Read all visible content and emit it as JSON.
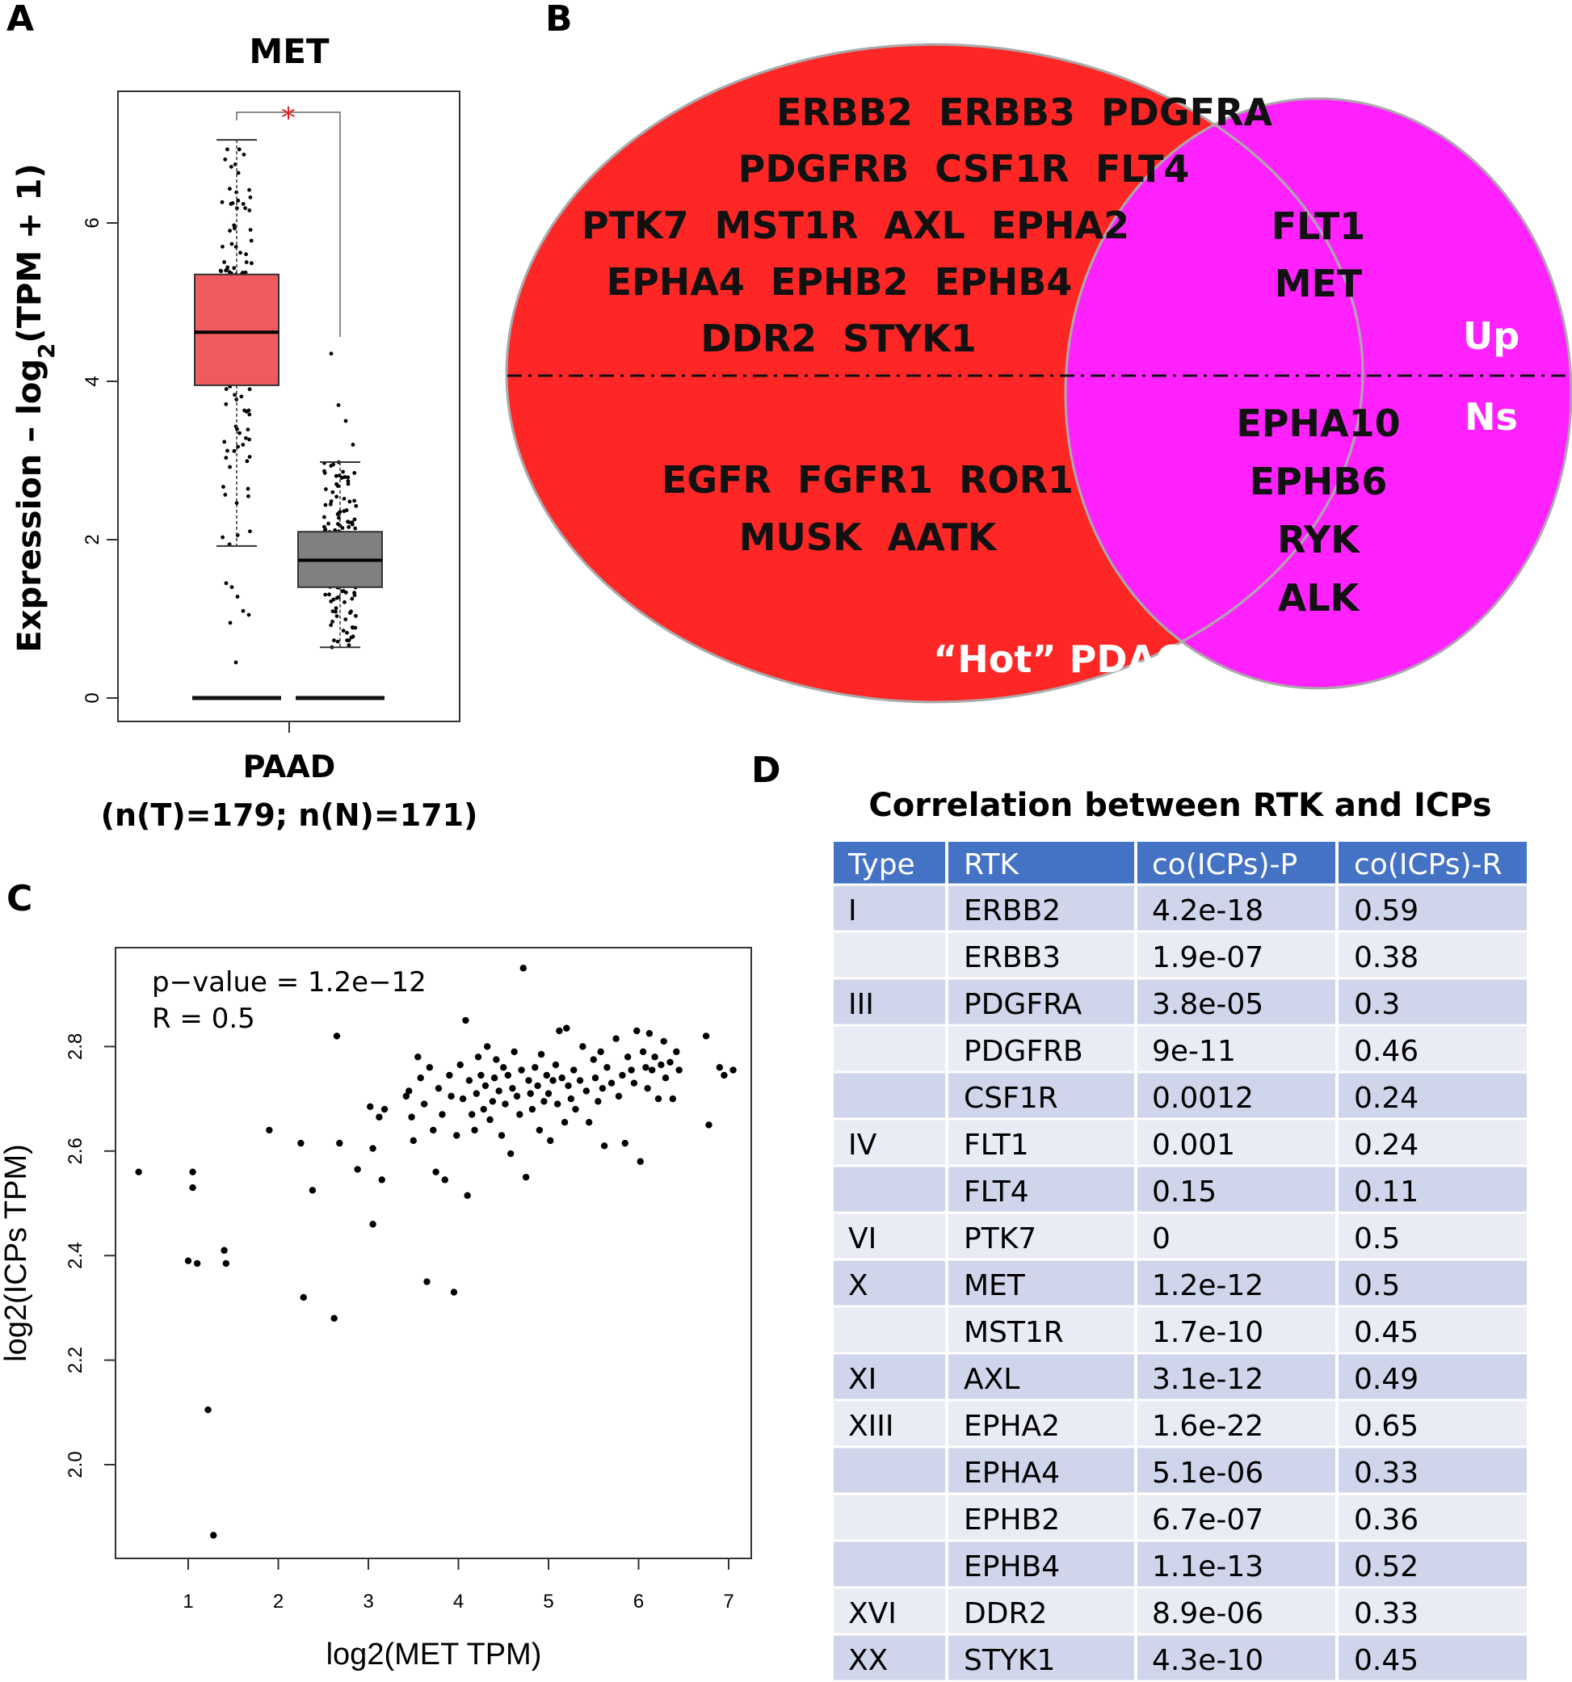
{
  "panels": {
    "a": "A",
    "b": "B",
    "c": "C",
    "d": "D"
  },
  "chart_data": [
    {
      "type": "box",
      "panel": "A",
      "title": "MET",
      "ylabel_prefix": "Expression – log",
      "ylabel_sub": "2",
      "ylabel_suffix": "(TPM + 1)",
      "xlabel": "PAAD",
      "xlabel_line2": "(n(T)=179; n(N)=171)",
      "significance": "*",
      "ylim": [
        -0.2,
        7.6
      ],
      "yticks": [
        "0",
        "2",
        "4",
        "6"
      ],
      "ytick_values": [
        0,
        2,
        4,
        6
      ],
      "colors": {
        "tumor": "#f05a5e",
        "normal": "#808080",
        "significance": "#e02020"
      },
      "boxes": [
        {
          "group": "T",
          "q1": 3.95,
          "median": 4.62,
          "q3": 5.35,
          "whisker_low": 1.92,
          "whisker_high": 7.05,
          "n": 179
        },
        {
          "group": "N",
          "q1": 1.4,
          "median": 1.74,
          "q3": 2.1,
          "whisker_low": 0.64,
          "whisker_high": 2.98,
          "n": 171
        }
      ],
      "baseline_value": 0
    },
    {
      "type": "venn",
      "panel": "B",
      "left_set": "“Hot” PDAC",
      "colors": {
        "left": "#ff2626",
        "right": "#ff22ff"
      },
      "left_up_rows": [
        "ERBB2  ERBB3  PDGFRA",
        "PDGFRB  CSF1R  FLT4",
        "PTK7  MST1R  AXL  EPHA2",
        "EPHA4  EPHB2  EPHB4",
        "DDR2  STYK1"
      ],
      "left_ns_rows": [
        "EGFR  FGFR1  ROR1",
        "MUSK  AATK"
      ],
      "right_up": [
        "FLT1",
        "MET"
      ],
      "right_ns": [
        "EPHA10",
        "EPHB6",
        "RYK",
        "ALK"
      ],
      "up_label": "Up",
      "ns_label": "Ns"
    },
    {
      "type": "scatter",
      "panel": "C",
      "annotation_p": "p−value = 1.2e−12",
      "annotation_r": "R = 0.5",
      "xlabel": "log2(MET TPM)",
      "ylabel": "log2(ICPs TPM)",
      "xlim": [
        0.3,
        7.3
      ],
      "ylim": [
        1.82,
        2.98
      ],
      "xticks": [
        "1",
        "2",
        "3",
        "4",
        "5",
        "6",
        "7"
      ],
      "xtick_values": [
        1,
        2,
        3,
        4,
        5,
        6,
        7
      ],
      "yticks": [
        "2.0",
        "2.2",
        "2.4",
        "2.6",
        "2.8"
      ],
      "ytick_values": [
        2.0,
        2.2,
        2.4,
        2.6,
        2.8
      ],
      "points": [
        [
          0.45,
          2.56
        ],
        [
          1.0,
          2.39
        ],
        [
          1.05,
          2.53
        ],
        [
          1.05,
          2.56
        ],
        [
          1.1,
          2.385
        ],
        [
          1.22,
          2.105
        ],
        [
          1.28,
          1.865
        ],
        [
          1.4,
          2.41
        ],
        [
          1.42,
          2.385
        ],
        [
          1.9,
          2.64
        ],
        [
          2.25,
          2.615
        ],
        [
          2.28,
          2.32
        ],
        [
          2.38,
          2.525
        ],
        [
          2.62,
          2.28
        ],
        [
          2.65,
          2.82
        ],
        [
          2.68,
          2.615
        ],
        [
          2.88,
          2.565
        ],
        [
          3.02,
          2.685
        ],
        [
          3.05,
          2.605
        ],
        [
          3.05,
          2.46
        ],
        [
          3.12,
          2.665
        ],
        [
          3.15,
          2.545
        ],
        [
          3.18,
          2.68
        ],
        [
          3.42,
          2.705
        ],
        [
          3.45,
          2.715
        ],
        [
          3.48,
          2.665
        ],
        [
          3.5,
          2.62
        ],
        [
          3.55,
          2.78
        ],
        [
          3.58,
          2.74
        ],
        [
          3.62,
          2.69
        ],
        [
          3.65,
          2.35
        ],
        [
          3.68,
          2.76
        ],
        [
          3.72,
          2.64
        ],
        [
          3.75,
          2.56
        ],
        [
          3.78,
          2.72
        ],
        [
          3.82,
          2.67
        ],
        [
          3.85,
          2.545
        ],
        [
          3.9,
          2.745
        ],
        [
          3.92,
          2.705
        ],
        [
          3.95,
          2.33
        ],
        [
          3.98,
          2.63
        ],
        [
          4.02,
          2.765
        ],
        [
          4.05,
          2.7
        ],
        [
          4.08,
          2.85
        ],
        [
          4.1,
          2.515
        ],
        [
          4.12,
          2.735
        ],
        [
          4.15,
          2.67
        ],
        [
          4.18,
          2.64
        ],
        [
          4.2,
          2.71
        ],
        [
          4.22,
          2.78
        ],
        [
          4.25,
          2.745
        ],
        [
          4.28,
          2.68
        ],
        [
          4.3,
          2.725
        ],
        [
          4.32,
          2.8
        ],
        [
          4.35,
          2.66
        ],
        [
          4.38,
          2.695
        ],
        [
          4.4,
          2.74
        ],
        [
          4.42,
          2.775
        ],
        [
          4.45,
          2.715
        ],
        [
          4.48,
          2.63
        ],
        [
          4.5,
          2.76
        ],
        [
          4.52,
          2.69
        ],
        [
          4.55,
          2.745
        ],
        [
          4.58,
          2.595
        ],
        [
          4.6,
          2.72
        ],
        [
          4.62,
          2.79
        ],
        [
          4.65,
          2.705
        ],
        [
          4.68,
          2.67
        ],
        [
          4.7,
          2.755
        ],
        [
          4.72,
          2.95
        ],
        [
          4.75,
          2.55
        ],
        [
          4.78,
          2.735
        ],
        [
          4.8,
          2.71
        ],
        [
          4.82,
          2.68
        ],
        [
          4.85,
          2.76
        ],
        [
          4.88,
          2.725
        ],
        [
          4.9,
          2.64
        ],
        [
          4.92,
          2.785
        ],
        [
          4.95,
          2.695
        ],
        [
          4.98,
          2.745
        ],
        [
          5.0,
          2.71
        ],
        [
          5.02,
          2.62
        ],
        [
          5.05,
          2.735
        ],
        [
          5.08,
          2.765
        ],
        [
          5.1,
          2.69
        ],
        [
          5.12,
          2.83
        ],
        [
          5.15,
          2.74
        ],
        [
          5.18,
          2.655
        ],
        [
          5.2,
          2.835
        ],
        [
          5.22,
          2.725
        ],
        [
          5.25,
          2.7
        ],
        [
          5.28,
          2.755
        ],
        [
          5.3,
          2.68
        ],
        [
          5.35,
          2.735
        ],
        [
          5.38,
          2.8
        ],
        [
          5.42,
          2.715
        ],
        [
          5.45,
          2.655
        ],
        [
          5.5,
          2.775
        ],
        [
          5.52,
          2.74
        ],
        [
          5.55,
          2.695
        ],
        [
          5.58,
          2.79
        ],
        [
          5.6,
          2.72
        ],
        [
          5.62,
          2.61
        ],
        [
          5.65,
          2.76
        ],
        [
          5.7,
          2.73
        ],
        [
          5.75,
          2.815
        ],
        [
          5.78,
          2.705
        ],
        [
          5.82,
          2.745
        ],
        [
          5.85,
          2.615
        ],
        [
          5.88,
          2.78
        ],
        [
          5.92,
          2.755
        ],
        [
          5.95,
          2.73
        ],
        [
          5.98,
          2.83
        ],
        [
          6.02,
          2.58
        ],
        [
          6.05,
          2.79
        ],
        [
          6.08,
          2.76
        ],
        [
          6.1,
          2.72
        ],
        [
          6.12,
          2.825
        ],
        [
          6.15,
          2.755
        ],
        [
          6.18,
          2.78
        ],
        [
          6.22,
          2.7
        ],
        [
          6.25,
          2.765
        ],
        [
          6.28,
          2.81
        ],
        [
          6.3,
          2.74
        ],
        [
          6.35,
          2.77
        ],
        [
          6.38,
          2.7
        ],
        [
          6.42,
          2.79
        ],
        [
          6.45,
          2.755
        ],
        [
          6.75,
          2.82
        ],
        [
          6.78,
          2.65
        ],
        [
          6.9,
          2.76
        ],
        [
          6.95,
          2.745
        ],
        [
          7.05,
          2.755
        ]
      ]
    },
    {
      "type": "table",
      "panel": "D",
      "title": "Correlation between RTK and ICPs",
      "colors": {
        "header": "#4472c4",
        "row_dark": "#cfd5ea",
        "row_light": "#e9ebf5"
      },
      "columns": [
        "Type",
        "RTK",
        "co(ICPs)-P",
        "co(ICPs)-R"
      ],
      "rows": [
        [
          "I",
          "ERBB2",
          "4.2e-18",
          "0.59"
        ],
        [
          "",
          "ERBB3",
          "1.9e-07",
          "0.38"
        ],
        [
          "III",
          "PDGFRA",
          "3.8e-05",
          "0.3"
        ],
        [
          "",
          "PDGFRB",
          "9e-11",
          "0.46"
        ],
        [
          "",
          "CSF1R",
          "0.0012",
          "0.24"
        ],
        [
          "IV",
          "FLT1",
          "0.001",
          "0.24"
        ],
        [
          "",
          "FLT4",
          "0.15",
          "0.11"
        ],
        [
          "VI",
          "PTK7",
          "0",
          "0.5"
        ],
        [
          "X",
          "MET",
          "1.2e-12",
          "0.5"
        ],
        [
          "",
          "MST1R",
          "1.7e-10",
          "0.45"
        ],
        [
          "XI",
          "AXL",
          "3.1e-12",
          "0.49"
        ],
        [
          "XIII",
          "EPHA2",
          "1.6e-22",
          "0.65"
        ],
        [
          "",
          "EPHA4",
          "5.1e-06",
          "0.33"
        ],
        [
          "",
          "EPHB2",
          "6.7e-07",
          "0.36"
        ],
        [
          "",
          "EPHB4",
          "1.1e-13",
          "0.52"
        ],
        [
          "XVI",
          "DDR2",
          "8.9e-06",
          "0.33"
        ],
        [
          "XX",
          "STYK1",
          "4.3e-10",
          "0.45"
        ]
      ]
    }
  ]
}
